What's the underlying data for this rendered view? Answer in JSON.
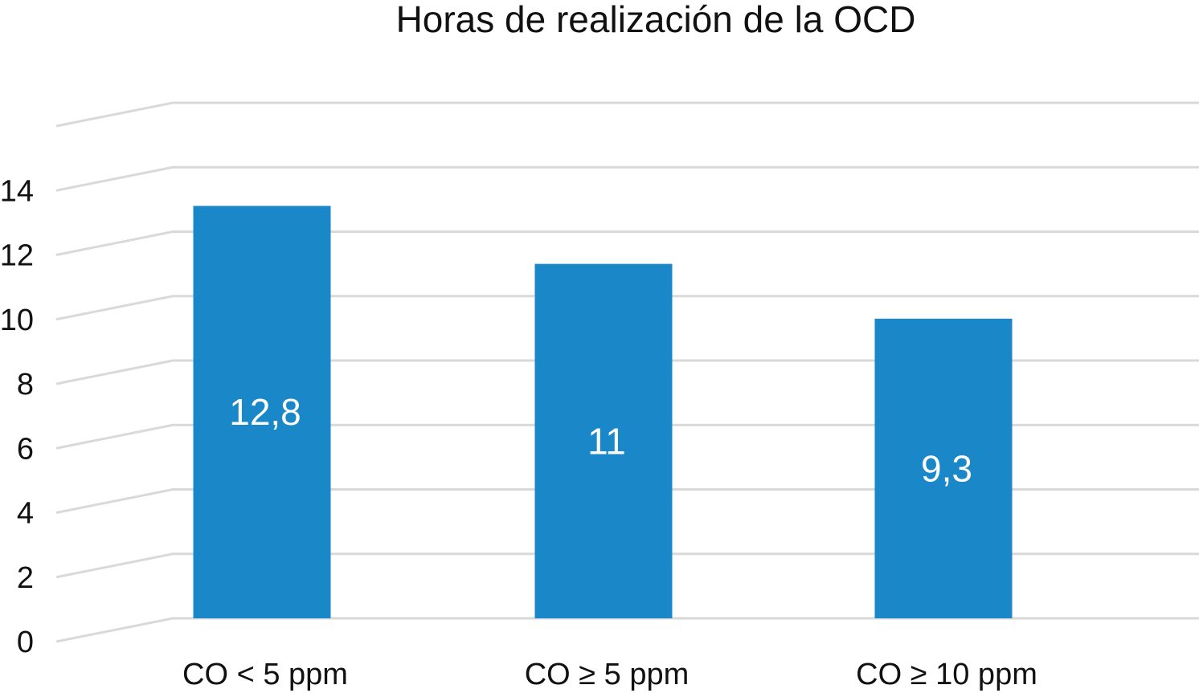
{
  "chart_data": {
    "type": "bar",
    "title": "Horas de realización de la OCD",
    "categories": [
      "CO < 5 ppm",
      "CO ≥ 5 ppm",
      "CO ≥ 10 ppm"
    ],
    "values": [
      12.8,
      11,
      9.3
    ],
    "data_labels": [
      "12,8",
      "11",
      "9,3"
    ],
    "yticks": [
      "0",
      "2",
      "4",
      "6",
      "8",
      "10",
      "12",
      "14"
    ],
    "ylim": [
      0,
      16
    ],
    "xlabel": "",
    "ylabel": "",
    "grid": true,
    "style": "3d-perspective-gridlines",
    "bar_color": "#1a87c8",
    "grid_color": "#d9d9d9"
  }
}
